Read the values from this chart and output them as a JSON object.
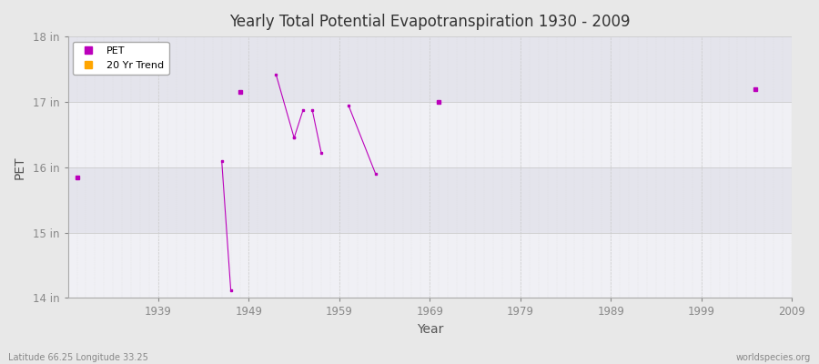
{
  "title": "Yearly Total Potential Evapotranspiration 1930 - 2009",
  "xlabel": "Year",
  "ylabel": "PET",
  "background_color": "#e8e8e8",
  "plot_bg_color": "#f5f5f8",
  "band_color": "#e8e8ee",
  "grid_color": "#cccccc",
  "pet_color": "#bb00bb",
  "trend_color": "#ffa500",
  "ylim": [
    14,
    18
  ],
  "xlim": [
    1929,
    2009
  ],
  "yticks": [
    14,
    15,
    16,
    17,
    18
  ],
  "ytick_labels": [
    "14 in",
    "15 in",
    "16 in",
    "17 in",
    "18 in"
  ],
  "xticks": [
    1939,
    1949,
    1959,
    1969,
    1979,
    1989,
    1999,
    2009
  ],
  "pet_segments": [
    {
      "x": [
        1930
      ],
      "y": [
        15.85
      ]
    },
    {
      "x": [
        1946,
        1947
      ],
      "y": [
        16.1,
        14.12
      ]
    },
    {
      "x": [
        1948
      ],
      "y": [
        17.15
      ]
    },
    {
      "x": [
        1952,
        1954
      ],
      "y": [
        17.42,
        16.45
      ]
    },
    {
      "x": [
        1954,
        1955
      ],
      "y": [
        16.45,
        16.88
      ]
    },
    {
      "x": [
        1956,
        1957
      ],
      "y": [
        16.88,
        16.22
      ]
    },
    {
      "x": [
        1960,
        1963
      ],
      "y": [
        16.95,
        15.9
      ]
    },
    {
      "x": [
        1970
      ],
      "y": [
        17.0
      ]
    },
    {
      "x": [
        2005
      ],
      "y": [
        17.2
      ]
    }
  ],
  "footnote_left": "Latitude 66.25 Longitude 33.25",
  "footnote_right": "worldspecies.org",
  "band_ranges": [
    [
      14,
      15
    ],
    [
      16,
      17
    ]
  ],
  "band_ranges2": [
    [
      15,
      16
    ],
    [
      17,
      18
    ]
  ]
}
